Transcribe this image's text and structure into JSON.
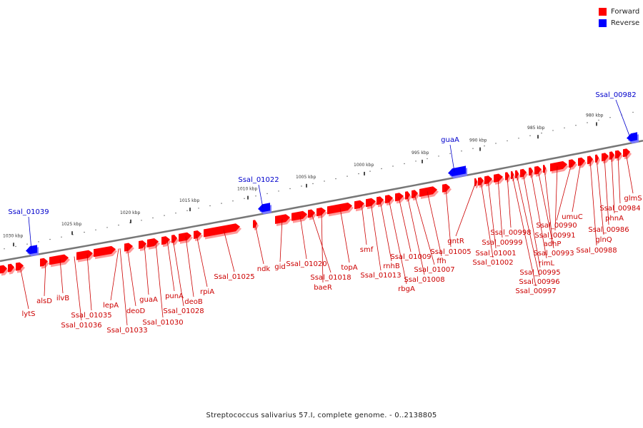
{
  "legend": [
    {
      "label": "Forward",
      "color": "#ff0000"
    },
    {
      "label": "Reverse",
      "color": "#0000ff"
    }
  ],
  "caption": "Streptococcus salivarius 57.I, complete genome. - 0..2138805",
  "colors": {
    "forward": "#ff0000",
    "reverse": "#0000ff",
    "backbone": "#777777",
    "label_forward": "#cc0000",
    "label_reverse": "#0000cc"
  },
  "scale_ticks": [
    "980 kbp",
    "985 kbp",
    "990 kbp",
    "995 kbp",
    "1000 kbp",
    "1005 kbp",
    "1010 kbp",
    "1015 kbp",
    "1020 kbp",
    "1025 kbp",
    "1030 kbp"
  ],
  "forward_genes": [
    "lytS",
    "alsD",
    "ilvB",
    "Ssal_01036",
    "Ssal_01035",
    "lepA",
    "deoD",
    "Ssal_01033",
    "guaA",
    "Ssal_01030",
    "punA",
    "Ssal_01028",
    "deoB",
    "rpiA",
    "Ssal_01025",
    "ndk",
    "gid",
    "Ssal_01020",
    "Ssal_01018",
    "baeR",
    "topA",
    "smf",
    "Ssal_01013",
    "rnhB",
    "rbgA",
    "Ssal_01009",
    "Ssal_01008",
    "Ssal_01007",
    "ffh",
    "Ssal_01005",
    "gntR",
    "Ssal_01002",
    "Ssal_01001",
    "Ssal_00999",
    "Ssal_00998",
    "Ssal_00997",
    "Ssal_00996",
    "Ssal_00995",
    "rimL",
    "Ssal_00993",
    "adhP",
    "Ssal_00991",
    "Ssal_00990",
    "umuC",
    "Ssal_00988",
    "glnQ",
    "Ssal_00986",
    "phnA",
    "Ssal_00984",
    "glmS"
  ],
  "reverse_genes": [
    "Ssal_01039",
    "Ssal_01022",
    "guaA",
    "Ssal_00982"
  ]
}
